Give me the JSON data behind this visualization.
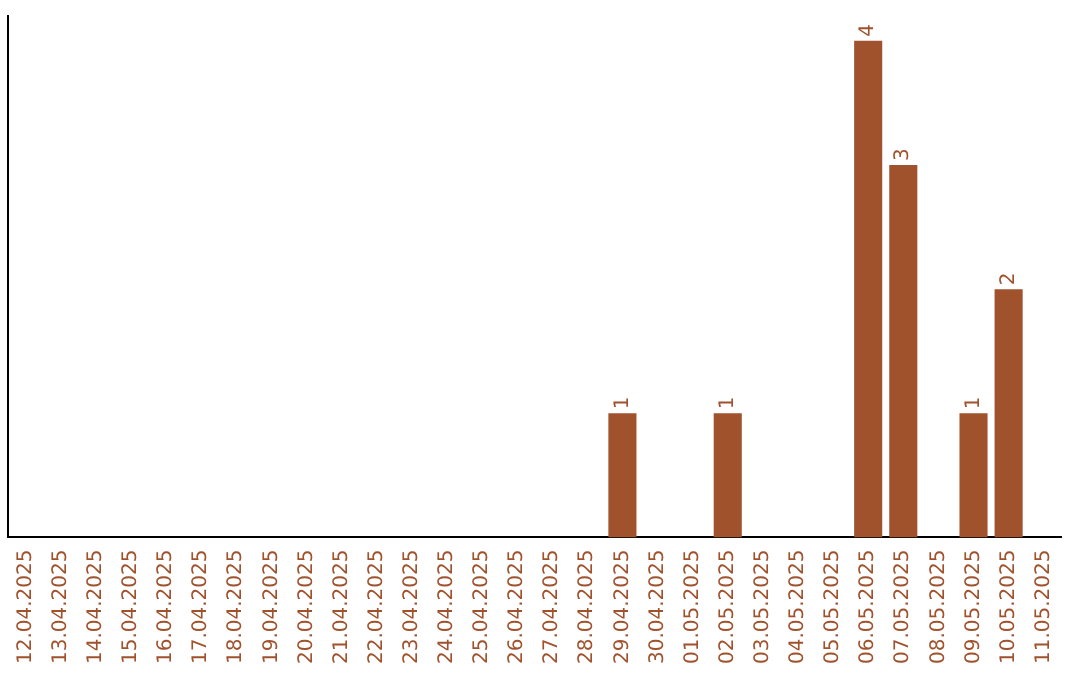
{
  "chart_data": {
    "type": "bar",
    "categories": [
      "12.04.2025",
      "13.04.2025",
      "14.04.2025",
      "15.04.2025",
      "16.04.2025",
      "17.04.2025",
      "18.04.2025",
      "19.04.2025",
      "20.04.2025",
      "21.04.2025",
      "22.04.2025",
      "23.04.2025",
      "24.04.2025",
      "25.04.2025",
      "26.04.2025",
      "27.04.2025",
      "28.04.2025",
      "29.04.2025",
      "30.04.2025",
      "01.05.2025",
      "02.05.2025",
      "03.05.2025",
      "04.05.2025",
      "05.05.2025",
      "06.05.2025",
      "07.05.2025",
      "08.05.2025",
      "09.05.2025",
      "10.05.2025",
      "11.05.2025"
    ],
    "values": [
      null,
      null,
      null,
      null,
      null,
      null,
      null,
      null,
      null,
      null,
      null,
      null,
      null,
      null,
      null,
      null,
      null,
      1,
      null,
      null,
      1,
      null,
      null,
      null,
      4,
      3,
      null,
      1,
      2,
      null
    ],
    "data_labels": true,
    "color": "#a0522d",
    "ylim": [
      0,
      4.2
    ],
    "tick_labels": "x",
    "grid": false,
    "legend": false
  }
}
